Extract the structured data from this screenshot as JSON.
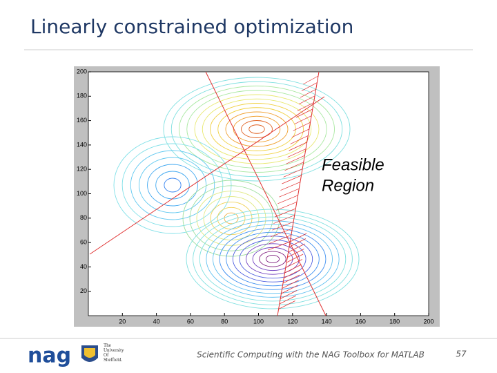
{
  "header": {
    "title": "Linearly constrained optimization"
  },
  "figure": {
    "xlim": [
      0,
      200
    ],
    "ylim": [
      0,
      200
    ],
    "xticks": [
      20,
      40,
      60,
      80,
      100,
      120,
      140,
      160,
      180,
      200
    ],
    "yticks": [
      20,
      40,
      60,
      80,
      100,
      120,
      140,
      160,
      180,
      200
    ],
    "annotation": [
      "Feasible",
      "Region"
    ]
  },
  "footer": {
    "logo": "nag",
    "university": [
      "The",
      "University",
      "Of",
      "Sheffield."
    ],
    "caption": "Scientific Computing with the NAG Toolbox for MATLAB",
    "page": "57"
  }
}
